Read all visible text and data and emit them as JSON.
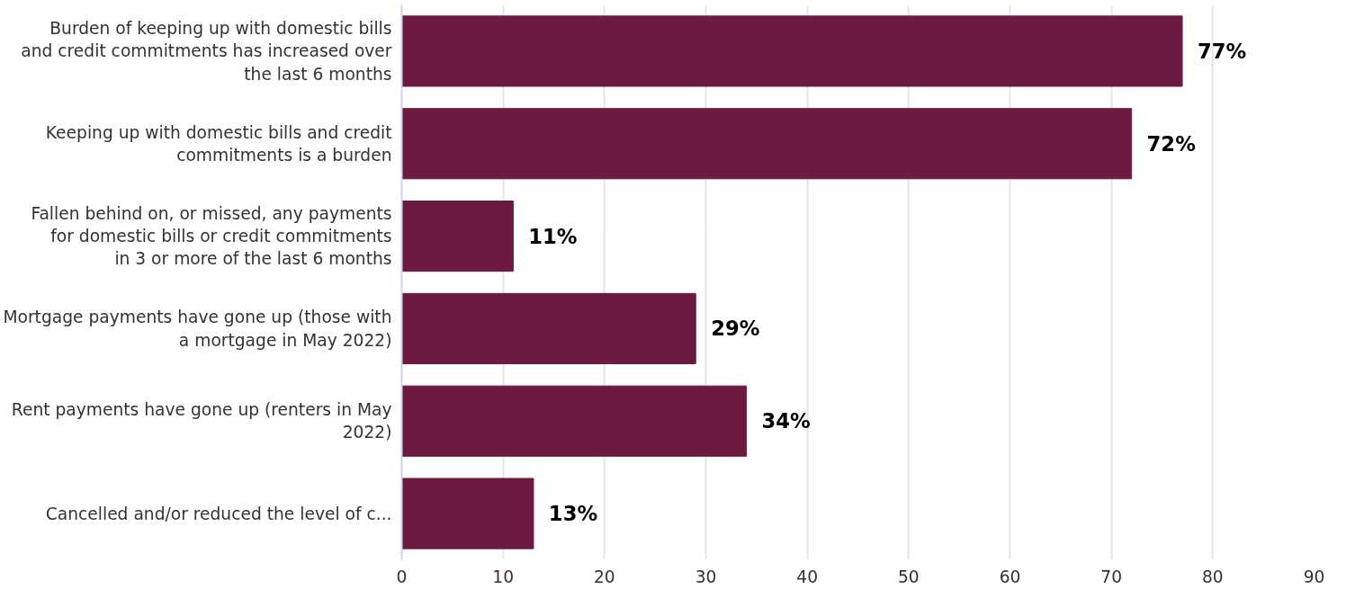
{
  "chart_data": {
    "type": "bar",
    "orientation": "horizontal",
    "categories": [
      "Burden of keeping up with domestic bills and credit commitments has increased over the last 6 months",
      "Keeping up with domestic bills and credit commitments is a burden",
      "Fallen behind on, or missed, any payments for domestic bills or credit commitments in 3 or more of the last 6 months",
      "Mortgage payments have gone up (those with a mortgage in May 2022)",
      "Rent payments have gone up (renters in May 2022)",
      "Cancelled and/or reduced the level of c..."
    ],
    "values": [
      77,
      72,
      11,
      29,
      34,
      13
    ],
    "value_labels": [
      "77%",
      "72%",
      "11%",
      "29%",
      "34%",
      "13%"
    ],
    "color": "#6d1a43",
    "xlim": [
      0,
      90
    ],
    "xticks": [
      0,
      10,
      20,
      30,
      40,
      50,
      60,
      70,
      80,
      90
    ],
    "grid": "x"
  }
}
